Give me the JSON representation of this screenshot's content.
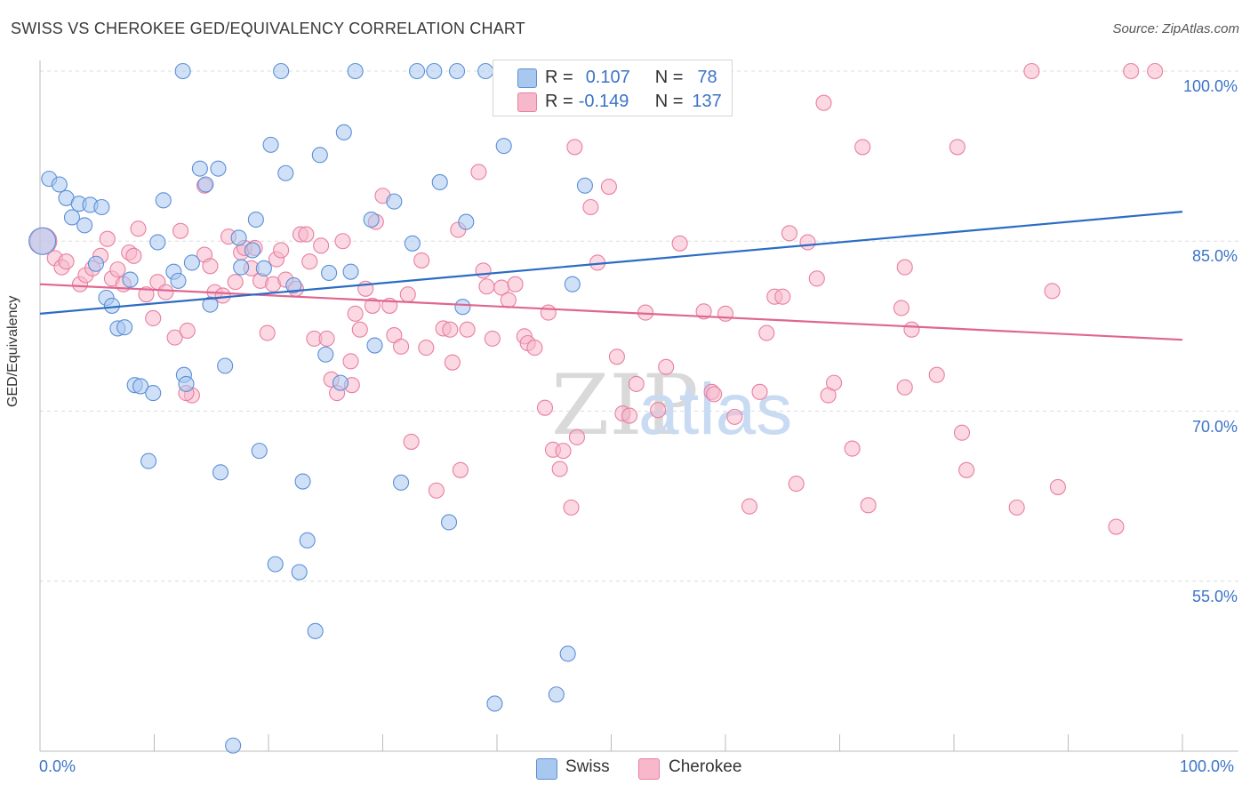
{
  "title": "SWISS VS CHEROKEE GED/EQUIVALENCY CORRELATION CHART",
  "source": "Source: ZipAtlas.com",
  "watermark": {
    "zip": "ZIP",
    "atlas": "atlas"
  },
  "colors": {
    "swiss_fill": "#a9c8f0",
    "swiss_stroke": "#5b8fd6",
    "swiss_line": "#2b6cc4",
    "cherokee_fill": "#f7b8cb",
    "cherokee_stroke": "#e87fa3",
    "cherokee_line": "#e0668f",
    "tick_text": "#3b73c8",
    "grid": "#dcdcdc"
  },
  "legend": {
    "swiss": {
      "r_label": "R =",
      "r_value": "0.107",
      "n_label": "N =",
      "n_value": "78"
    },
    "cherokee": {
      "r_label": "R =",
      "r_value": "-0.149",
      "n_label": "N =",
      "n_value": "137"
    }
  },
  "bottom_legend": {
    "swiss": "Swiss",
    "cherokee": "Cherokee"
  },
  "chart_data": {
    "type": "scatter",
    "title": "SWISS VS CHEROKEE GED/EQUIVALENCY CORRELATION CHART",
    "xlabel": "",
    "ylabel": "GED/Equivalency",
    "xlim": [
      0,
      100
    ],
    "ylim": [
      40,
      100
    ],
    "x_tick_labels": [
      "0.0%",
      "100.0%"
    ],
    "y_ticks": [
      55,
      70,
      85,
      100
    ],
    "y_tick_labels": [
      "55.0%",
      "70.0%",
      "85.0%",
      "100.0%"
    ],
    "grid": "horizontal dashed",
    "legend_position": "top-center",
    "series": [
      {
        "name": "Swiss",
        "trend": {
          "x": [
            0,
            100
          ],
          "y": [
            78.6,
            87.6
          ]
        },
        "points": [
          [
            0.2,
            85
          ],
          [
            0.8,
            90.5
          ],
          [
            1.7,
            90
          ],
          [
            2.3,
            88.8
          ],
          [
            2.8,
            87.1
          ],
          [
            3.4,
            88.3
          ],
          [
            3.9,
            86.4
          ],
          [
            4.4,
            88.2
          ],
          [
            5.4,
            88
          ],
          [
            4.9,
            83
          ],
          [
            5.8,
            80
          ],
          [
            6.3,
            79.3
          ],
          [
            6.8,
            77.3
          ],
          [
            7.4,
            77.4
          ],
          [
            7.9,
            81.6
          ],
          [
            8.3,
            72.3
          ],
          [
            8.8,
            72.2
          ],
          [
            9.9,
            71.6
          ],
          [
            10.3,
            84.9
          ],
          [
            10.8,
            88.6
          ],
          [
            11.7,
            82.3
          ],
          [
            12.1,
            81.5
          ],
          [
            12.6,
            73.2
          ],
          [
            12.8,
            72.4
          ],
          [
            13.3,
            83.1
          ],
          [
            14,
            91.4
          ],
          [
            14.5,
            90
          ],
          [
            14.9,
            79.4
          ],
          [
            15.6,
            91.4
          ],
          [
            16.2,
            74
          ],
          [
            17.4,
            85.3
          ],
          [
            17.6,
            82.7
          ],
          [
            18.6,
            84.2
          ],
          [
            18.9,
            86.9
          ],
          [
            19.2,
            66.5
          ],
          [
            19.6,
            82.6
          ],
          [
            20.2,
            93.5
          ],
          [
            20.6,
            56.5
          ],
          [
            21.5,
            91
          ],
          [
            22.2,
            81.1
          ],
          [
            23,
            63.8
          ],
          [
            23.4,
            58.6
          ],
          [
            24.1,
            50.6
          ],
          [
            24.5,
            92.6
          ],
          [
            25,
            75
          ],
          [
            25.3,
            82.2
          ],
          [
            26.3,
            72.5
          ],
          [
            26.6,
            94.6
          ],
          [
            27.2,
            82.3
          ],
          [
            29,
            86.9
          ],
          [
            29.3,
            75.8
          ],
          [
            31,
            88.5
          ],
          [
            31.6,
            63.7
          ],
          [
            32.6,
            84.8
          ],
          [
            33,
            100
          ],
          [
            34.5,
            100
          ],
          [
            35,
            90.2
          ],
          [
            35.8,
            60.2
          ],
          [
            36.5,
            100
          ],
          [
            37,
            79.2
          ],
          [
            37.3,
            86.7
          ],
          [
            39,
            100
          ],
          [
            39.8,
            44.2
          ],
          [
            40.6,
            93.4
          ],
          [
            41.6,
            100
          ],
          [
            44.8,
            100
          ],
          [
            45.2,
            45
          ],
          [
            46.2,
            48.6
          ],
          [
            46.6,
            81.2
          ],
          [
            47.9,
            100
          ],
          [
            47.7,
            89.9
          ],
          [
            12.5,
            100
          ],
          [
            16.9,
            40.5
          ],
          [
            22.7,
            55.8
          ],
          [
            21.1,
            100
          ],
          [
            9.5,
            65.6
          ],
          [
            15.8,
            64.6
          ],
          [
            27.6,
            100
          ]
        ]
      },
      {
        "name": "Cherokee",
        "trend": {
          "x": [
            0,
            100
          ],
          "y": [
            81.2,
            76.3
          ]
        },
        "points": [
          [
            0.3,
            85
          ],
          [
            1.3,
            83.5
          ],
          [
            1.9,
            82.7
          ],
          [
            2.3,
            83.2
          ],
          [
            3.5,
            81.2
          ],
          [
            4,
            82
          ],
          [
            4.6,
            82.6
          ],
          [
            5.3,
            83.7
          ],
          [
            5.9,
            85.2
          ],
          [
            6.3,
            81.7
          ],
          [
            6.8,
            82.5
          ],
          [
            7.3,
            81.2
          ],
          [
            7.8,
            84
          ],
          [
            8.2,
            83.7
          ],
          [
            8.6,
            86.1
          ],
          [
            9.3,
            80.3
          ],
          [
            9.9,
            78.2
          ],
          [
            10.3,
            81.4
          ],
          [
            11,
            80.5
          ],
          [
            11.8,
            76.5
          ],
          [
            12.3,
            85.9
          ],
          [
            12.9,
            77.1
          ],
          [
            13.3,
            71.4
          ],
          [
            14.4,
            83.8
          ],
          [
            14.9,
            82.8
          ],
          [
            15.3,
            80.5
          ],
          [
            16,
            80.2
          ],
          [
            16.5,
            85.4
          ],
          [
            17.1,
            81.4
          ],
          [
            17.6,
            84
          ],
          [
            17.9,
            84.4
          ],
          [
            18.5,
            82.6
          ],
          [
            18.8,
            84.4
          ],
          [
            19.3,
            81.5
          ],
          [
            19.9,
            76.9
          ],
          [
            20.4,
            81.2
          ],
          [
            20.7,
            83.4
          ],
          [
            21.1,
            84.2
          ],
          [
            21.5,
            81.6
          ],
          [
            22.4,
            80.8
          ],
          [
            22.8,
            85.6
          ],
          [
            23.6,
            83.2
          ],
          [
            24,
            76.4
          ],
          [
            24.6,
            84.6
          ],
          [
            25.1,
            76.4
          ],
          [
            25.5,
            72.8
          ],
          [
            26,
            71.6
          ],
          [
            26.5,
            85
          ],
          [
            27.2,
            74.4
          ],
          [
            27.6,
            78.6
          ],
          [
            28,
            77.2
          ],
          [
            28.5,
            80.8
          ],
          [
            29.1,
            79.3
          ],
          [
            29.4,
            86.7
          ],
          [
            30,
            89
          ],
          [
            30.6,
            79.3
          ],
          [
            31,
            76.7
          ],
          [
            31.6,
            75.7
          ],
          [
            32.2,
            80.3
          ],
          [
            32.5,
            67.3
          ],
          [
            33.4,
            83.3
          ],
          [
            33.8,
            75.6
          ],
          [
            34.7,
            63
          ],
          [
            35.3,
            77.3
          ],
          [
            35.9,
            77.2
          ],
          [
            36.1,
            74.3
          ],
          [
            36.6,
            86
          ],
          [
            36.8,
            64.8
          ],
          [
            37.4,
            77.2
          ],
          [
            38.4,
            91.1
          ],
          [
            38.8,
            82.4
          ],
          [
            39.1,
            81
          ],
          [
            39.6,
            76.4
          ],
          [
            40.4,
            80.9
          ],
          [
            41,
            79.8
          ],
          [
            41.6,
            81.2
          ],
          [
            42.4,
            76.6
          ],
          [
            42.7,
            76
          ],
          [
            43.3,
            75.6
          ],
          [
            44.2,
            70.3
          ],
          [
            44.5,
            78.7
          ],
          [
            44.9,
            66.6
          ],
          [
            45.8,
            66.5
          ],
          [
            46.5,
            61.5
          ],
          [
            47,
            67.7
          ],
          [
            48.2,
            88
          ],
          [
            48.8,
            83.1
          ],
          [
            49.8,
            89.8
          ],
          [
            50.5,
            74.8
          ],
          [
            51,
            69.8
          ],
          [
            51.6,
            69.6
          ],
          [
            52.2,
            72.4
          ],
          [
            53,
            78.7
          ],
          [
            54.1,
            70.1
          ],
          [
            54.8,
            73.9
          ],
          [
            56,
            84.8
          ],
          [
            58.1,
            78.8
          ],
          [
            58.8,
            71.7
          ],
          [
            59,
            71.5
          ],
          [
            60,
            78.6
          ],
          [
            60.8,
            69.5
          ],
          [
            62.1,
            61.6
          ],
          [
            63.6,
            76.9
          ],
          [
            64.3,
            80.1
          ],
          [
            65,
            80.1
          ],
          [
            65.6,
            85.7
          ],
          [
            66.2,
            63.6
          ],
          [
            67.2,
            84.9
          ],
          [
            68,
            81.7
          ],
          [
            68.6,
            97.2
          ],
          [
            69,
            71.4
          ],
          [
            69.5,
            72.5
          ],
          [
            71.1,
            66.7
          ],
          [
            72,
            93.3
          ],
          [
            75.4,
            79.1
          ],
          [
            75.7,
            82.7
          ],
          [
            76.3,
            77.2
          ],
          [
            78.5,
            73.2
          ],
          [
            80.3,
            93.3
          ],
          [
            80.7,
            68.1
          ],
          [
            81.1,
            64.8
          ],
          [
            85.5,
            61.5
          ],
          [
            86.8,
            100
          ],
          [
            88.6,
            80.6
          ],
          [
            94.2,
            59.8
          ],
          [
            95.5,
            100
          ],
          [
            97.6,
            100
          ],
          [
            12.8,
            71.6
          ],
          [
            14.4,
            89.9
          ],
          [
            27.3,
            72.3
          ],
          [
            45.5,
            64.9
          ],
          [
            46.8,
            93.3
          ],
          [
            63,
            71.7
          ],
          [
            72.5,
            61.7
          ],
          [
            75.7,
            72.1
          ],
          [
            89.1,
            63.3
          ],
          [
            23.3,
            85.6
          ]
        ]
      }
    ]
  }
}
